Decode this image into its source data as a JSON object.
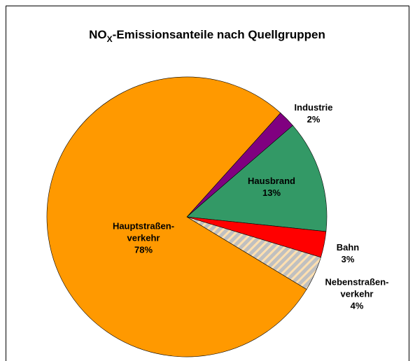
{
  "chart_data": {
    "type": "pie",
    "title": [
      "NO",
      "X",
      "-Emissionsanteile nach Quellgruppen"
    ],
    "categories": [
      "Industrie",
      "Hausbrand",
      "Bahn",
      "Nebenstraßen-\nverkehr",
      "Hauptstraßen-\nverkehr"
    ],
    "values": [
      2,
      13,
      3,
      4,
      78
    ],
    "value_labels": [
      "2%",
      "13%",
      "3%",
      "4%",
      "78%"
    ],
    "colors": [
      "#800080",
      "#339966",
      "#ff0000",
      "#c0c0c0",
      "#ff9900"
    ],
    "hatch": [
      false,
      false,
      false,
      true,
      false
    ]
  }
}
